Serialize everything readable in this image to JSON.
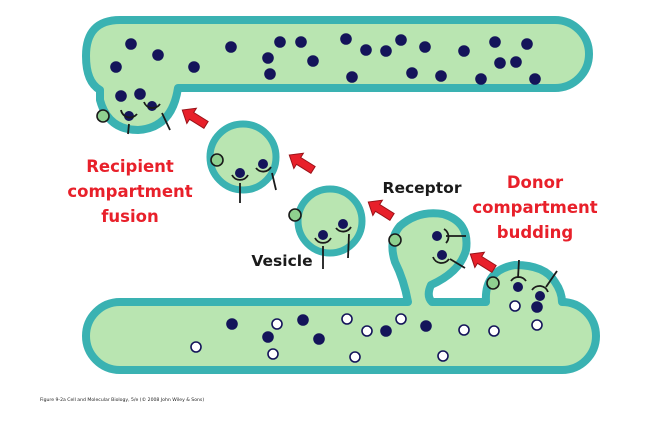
{
  "labels": {
    "recipient_line1": "Recipient",
    "recipient_line2": "compartment",
    "recipient_line3": "fusion",
    "donor_line1": "Donor",
    "donor_line2": "compartment",
    "donor_line3": "budding",
    "receptor": "Receptor",
    "vesicle": "Vesicle"
  },
  "caption": "Figure 9-2a Cell and Molecular Biology, 5/e (© 2008 John Wiley & Sons)",
  "colors": {
    "membrane": "#3ab2b2",
    "lumen": "#b9e5b1",
    "cargo_dark": "#14145a",
    "cargo_light": "#ffffff",
    "receptor_head": "#8fd08f",
    "arrow": "#e8202a",
    "label_red": "#e8202a",
    "label_black": "#1a1a1a"
  }
}
